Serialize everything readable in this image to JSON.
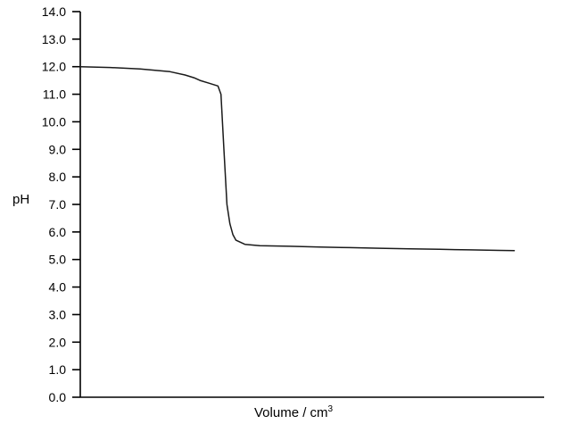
{
  "chart_data": {
    "type": "line",
    "title": "",
    "xlabel": "Volume / cm",
    "xlabel_superscript": "3",
    "ylabel": "pH",
    "ylim": [
      0,
      14
    ],
    "y_ticks": [
      "0.0",
      "1.0",
      "2.0",
      "3.0",
      "4.0",
      "5.0",
      "6.0",
      "7.0",
      "8.0",
      "9.0",
      "10.0",
      "11.0",
      "12.0",
      "13.0",
      "14.0"
    ],
    "x_ticks": [],
    "grid": false,
    "series": [
      {
        "x": [
          0,
          10,
          20,
          30,
          35,
          38,
          40,
          43,
          46,
          47,
          48,
          49,
          50,
          51,
          52,
          55,
          60,
          70,
          80,
          90,
          100,
          110,
          120,
          130,
          140,
          145
        ],
        "y": [
          12.0,
          11.97,
          11.92,
          11.82,
          11.7,
          11.6,
          11.5,
          11.4,
          11.3,
          11.0,
          9.0,
          7.0,
          6.3,
          5.9,
          5.7,
          5.55,
          5.5,
          5.48,
          5.45,
          5.43,
          5.41,
          5.39,
          5.37,
          5.35,
          5.33,
          5.32
        ]
      }
    ],
    "colors": {
      "line": "#1a1a1a",
      "axis": "#000000"
    }
  }
}
